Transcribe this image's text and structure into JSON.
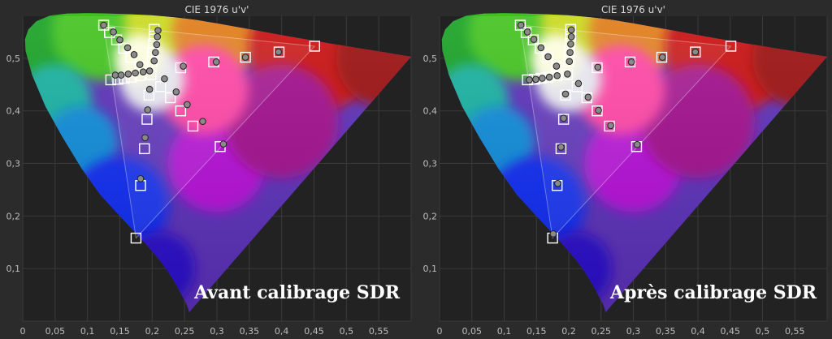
{
  "colors": {
    "background": "#2b2b2b",
    "plot_background": "#222222",
    "gridline": "#3a3a3a",
    "tick_text": "#bdbdbd",
    "marker_border": "#ffffff",
    "measured_marker": "#8a8a8a",
    "measured_marker_outline": "#222222"
  },
  "chart_data": [
    {
      "type": "scatter",
      "title": "CIE 1976 u'v'",
      "caption": "Avant calibrage SDR",
      "xlabel": "",
      "ylabel": "",
      "xlim": [
        0,
        0.6
      ],
      "ylim": [
        0,
        0.58
      ],
      "x_ticks": [
        "0",
        "0,05",
        "0,1",
        "0,15",
        "0,2",
        "0,25",
        "0,3",
        "0,35",
        "0,4",
        "0,45",
        "0,5",
        "0,55"
      ],
      "y_ticks": [
        "0,1",
        "0,2",
        "0,3",
        "0,4",
        "0,5"
      ],
      "grid": true,
      "gamut_triangle": {
        "red": [
          0.451,
          0.523
        ],
        "green": [
          0.125,
          0.563
        ],
        "blue": [
          0.175,
          0.158
        ]
      },
      "series": [
        {
          "marker": "square",
          "points": [
            [
              0.125,
              0.563
            ],
            [
              0.134,
              0.549
            ],
            [
              0.145,
              0.535
            ],
            [
              0.156,
              0.519
            ],
            [
              0.167,
              0.502
            ],
            [
              0.181,
              0.484
            ],
            [
              0.203,
              0.555
            ],
            [
              0.203,
              0.542
            ],
            [
              0.202,
              0.528
            ],
            [
              0.201,
              0.512
            ],
            [
              0.2,
              0.494
            ],
            [
              0.244,
              0.482
            ],
            [
              0.295,
              0.493
            ],
            [
              0.344,
              0.502
            ],
            [
              0.396,
              0.512
            ],
            [
              0.451,
              0.523
            ],
            [
              0.136,
              0.459
            ],
            [
              0.147,
              0.46
            ],
            [
              0.157,
              0.462
            ],
            [
              0.168,
              0.464
            ],
            [
              0.181,
              0.467
            ],
            [
              0.198,
              0.469
            ],
            [
              0.213,
              0.446
            ],
            [
              0.228,
              0.425
            ],
            [
              0.244,
              0.4
            ],
            [
              0.263,
              0.371
            ],
            [
              0.305,
              0.332
            ],
            [
              0.195,
              0.43
            ],
            [
              0.192,
              0.384
            ],
            [
              0.188,
              0.328
            ],
            [
              0.182,
              0.258
            ],
            [
              0.175,
              0.158
            ]
          ]
        },
        {
          "marker": "circle",
          "points": [
            [
              0.125,
              0.563
            ],
            [
              0.14,
              0.55
            ],
            [
              0.15,
              0.535
            ],
            [
              0.162,
              0.52
            ],
            [
              0.172,
              0.507
            ],
            [
              0.181,
              0.488
            ],
            [
              0.209,
              0.553
            ],
            [
              0.208,
              0.541
            ],
            [
              0.207,
              0.526
            ],
            [
              0.205,
              0.511
            ],
            [
              0.203,
              0.495
            ],
            [
              0.248,
              0.485
            ],
            [
              0.299,
              0.493
            ],
            [
              0.344,
              0.502
            ],
            [
              0.395,
              0.512
            ],
            [
              0.143,
              0.468
            ],
            [
              0.152,
              0.468
            ],
            [
              0.163,
              0.47
            ],
            [
              0.174,
              0.472
            ],
            [
              0.186,
              0.474
            ],
            [
              0.196,
              0.476
            ],
            [
              0.219,
              0.461
            ],
            [
              0.237,
              0.436
            ],
            [
              0.254,
              0.412
            ],
            [
              0.278,
              0.38
            ],
            [
              0.31,
              0.337
            ],
            [
              0.196,
              0.441
            ],
            [
              0.193,
              0.402
            ],
            [
              0.189,
              0.349
            ],
            [
              0.182,
              0.271
            ]
          ]
        }
      ]
    },
    {
      "type": "scatter",
      "title": "CIE 1976 u'v'",
      "caption": "Après calibrage SDR",
      "xlabel": "",
      "ylabel": "",
      "xlim": [
        0,
        0.6
      ],
      "ylim": [
        0,
        0.58
      ],
      "x_ticks": [
        "0",
        "0,05",
        "0,1",
        "0,15",
        "0,2",
        "0,25",
        "0,3",
        "0,35",
        "0,4",
        "0,45",
        "0,5",
        "0,55"
      ],
      "y_ticks": [
        "0,1",
        "0,2",
        "0,3",
        "0,4",
        "0,5"
      ],
      "grid": true,
      "gamut_triangle": {
        "red": [
          0.451,
          0.523
        ],
        "green": [
          0.125,
          0.563
        ],
        "blue": [
          0.175,
          0.158
        ]
      },
      "series": [
        {
          "marker": "square",
          "points": [
            [
              0.125,
              0.563
            ],
            [
              0.134,
              0.549
            ],
            [
              0.145,
              0.535
            ],
            [
              0.156,
              0.519
            ],
            [
              0.167,
              0.502
            ],
            [
              0.181,
              0.484
            ],
            [
              0.203,
              0.555
            ],
            [
              0.203,
              0.542
            ],
            [
              0.202,
              0.528
            ],
            [
              0.201,
              0.512
            ],
            [
              0.2,
              0.494
            ],
            [
              0.244,
              0.482
            ],
            [
              0.295,
              0.493
            ],
            [
              0.344,
              0.502
            ],
            [
              0.396,
              0.512
            ],
            [
              0.451,
              0.523
            ],
            [
              0.136,
              0.459
            ],
            [
              0.147,
              0.46
            ],
            [
              0.157,
              0.462
            ],
            [
              0.168,
              0.464
            ],
            [
              0.181,
              0.467
            ],
            [
              0.198,
              0.469
            ],
            [
              0.213,
              0.446
            ],
            [
              0.228,
              0.425
            ],
            [
              0.244,
              0.4
            ],
            [
              0.263,
              0.371
            ],
            [
              0.305,
              0.332
            ],
            [
              0.195,
              0.43
            ],
            [
              0.192,
              0.384
            ],
            [
              0.188,
              0.328
            ],
            [
              0.182,
              0.258
            ],
            [
              0.175,
              0.158
            ]
          ]
        },
        {
          "marker": "circle",
          "points": [
            [
              0.126,
              0.563
            ],
            [
              0.136,
              0.55
            ],
            [
              0.146,
              0.536
            ],
            [
              0.157,
              0.52
            ],
            [
              0.168,
              0.503
            ],
            [
              0.181,
              0.485
            ],
            [
              0.204,
              0.554
            ],
            [
              0.204,
              0.541
            ],
            [
              0.203,
              0.527
            ],
            [
              0.202,
              0.511
            ],
            [
              0.201,
              0.494
            ],
            [
              0.245,
              0.483
            ],
            [
              0.297,
              0.493
            ],
            [
              0.345,
              0.502
            ],
            [
              0.396,
              0.512
            ],
            [
              0.139,
              0.459
            ],
            [
              0.149,
              0.46
            ],
            [
              0.159,
              0.462
            ],
            [
              0.17,
              0.464
            ],
            [
              0.182,
              0.467
            ],
            [
              0.198,
              0.47
            ],
            [
              0.215,
              0.452
            ],
            [
              0.23,
              0.426
            ],
            [
              0.246,
              0.401
            ],
            [
              0.265,
              0.372
            ],
            [
              0.306,
              0.336
            ],
            [
              0.195,
              0.432
            ],
            [
              0.192,
              0.386
            ],
            [
              0.188,
              0.331
            ],
            [
              0.183,
              0.262
            ],
            [
              0.176,
              0.166
            ]
          ]
        }
      ]
    }
  ]
}
